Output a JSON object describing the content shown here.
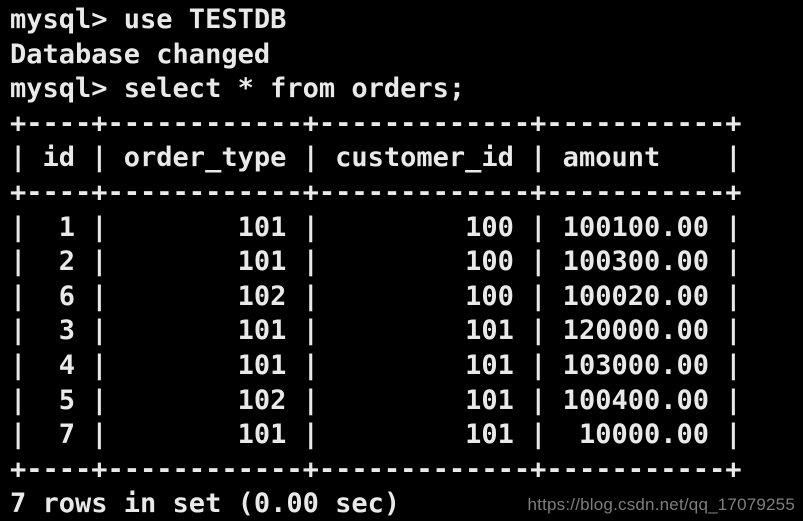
{
  "colors": {
    "background": "#000000",
    "terminal_text": "#e9e9e9",
    "watermark_text": "#7e7e7e"
  },
  "terminal": {
    "prompt": "mysql>",
    "commands": [
      "use TESTDB",
      "select * from orders;"
    ],
    "responses": [
      "Database changed"
    ],
    "result_table": {
      "headers": [
        "id",
        "order_type",
        "customer_id",
        "amount"
      ],
      "rows": [
        [
          "1",
          "101",
          "100",
          "100100.00"
        ],
        [
          "2",
          "101",
          "100",
          "100300.00"
        ],
        [
          "6",
          "102",
          "100",
          "100020.00"
        ],
        [
          "3",
          "101",
          "101",
          "120000.00"
        ],
        [
          "4",
          "101",
          "101",
          "103000.00"
        ],
        [
          "5",
          "102",
          "101",
          "100400.00"
        ],
        [
          "7",
          "101",
          "101",
          "10000.00"
        ]
      ],
      "summary": "7 rows in set (0.00 sec)"
    },
    "lines": [
      "mysql> use TESTDB",
      "Database changed",
      "mysql> select * from orders;",
      "+----+------------+-------------+-----------+",
      "| id | order_type | customer_id | amount    |",
      "+----+------------+-------------+-----------+",
      "|  1 |        101 |         100 | 100100.00 |",
      "|  2 |        101 |         100 | 100300.00 |",
      "|  6 |        102 |         100 | 100020.00 |",
      "|  3 |        101 |         101 | 120000.00 |",
      "|  4 |        101 |         101 | 103000.00 |",
      "|  5 |        102 |         101 | 100400.00 |",
      "|  7 |        101 |         101 |  10000.00 |",
      "+----+------------+-------------+-----------+",
      "7 rows in set (0.00 sec)"
    ]
  },
  "watermark": {
    "text": "https://blog.csdn.net/qq_17079255"
  }
}
